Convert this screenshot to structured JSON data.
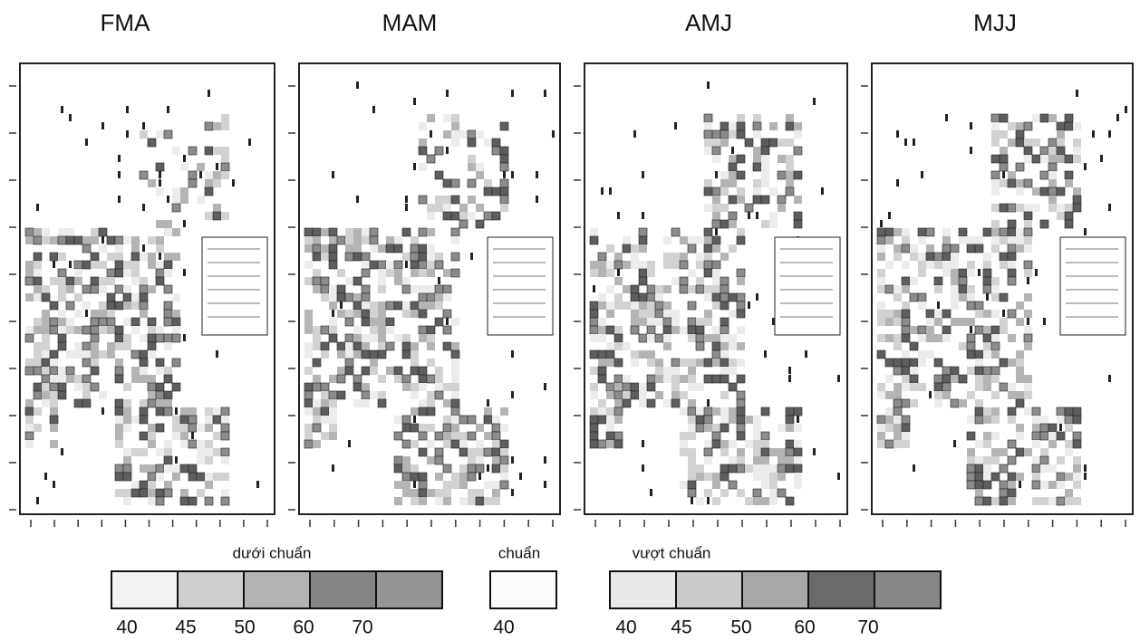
{
  "panels": [
    {
      "title": "FMA"
    },
    {
      "title": "MAM"
    },
    {
      "title": "AMJ"
    },
    {
      "title": "MJJ"
    }
  ],
  "legend": {
    "groups": [
      {
        "title": "dưới chuẩn",
        "labels": [
          "40",
          "45",
          "50",
          "60",
          "70"
        ]
      },
      {
        "title": "chuẩn",
        "labels": [
          "40"
        ]
      },
      {
        "title": "vượt chuẩn",
        "labels": [
          "40",
          "45",
          "50",
          "60",
          "70"
        ]
      }
    ]
  }
}
